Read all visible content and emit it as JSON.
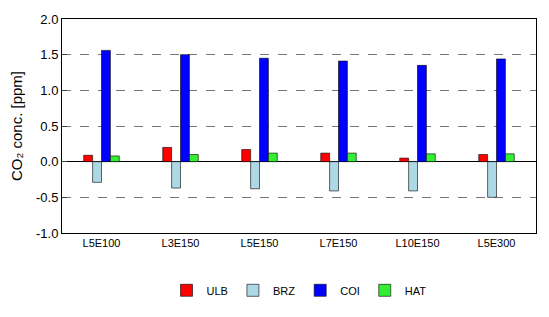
{
  "chart_data": {
    "type": "bar",
    "categories": [
      "L5E100",
      "L3E150",
      "L5E150",
      "L7E150",
      "L10E150",
      "L5E300"
    ],
    "series": [
      {
        "name": "ULB",
        "color": "#ff0000",
        "values": [
          0.09,
          0.2,
          0.17,
          0.12,
          0.05,
          0.1
        ]
      },
      {
        "name": "BRZ",
        "color": "#add8e6",
        "values": [
          -0.29,
          -0.37,
          -0.38,
          -0.41,
          -0.41,
          -0.5
        ]
      },
      {
        "name": "COI",
        "color": "#0000ff",
        "values": [
          1.56,
          1.5,
          1.45,
          1.41,
          1.35,
          1.44
        ]
      },
      {
        "name": "HAT",
        "color": "#33ee33",
        "values": [
          0.08,
          0.1,
          0.12,
          0.12,
          0.11,
          0.11
        ]
      }
    ],
    "y_label": "CO₂ conc. [ppm]",
    "ylim": [
      -1,
      2
    ],
    "yticks": [
      {
        "value": -1,
        "label": "-1.0"
      },
      {
        "value": -0.5,
        "label": "-0.5"
      },
      {
        "value": 0,
        "label": "0.0"
      },
      {
        "value": 0.5,
        "label": "0.5"
      },
      {
        "value": 1,
        "label": "1.0"
      },
      {
        "value": 1.5,
        "label": "1.5"
      },
      {
        "value": 2,
        "label": "2.0"
      }
    ],
    "grid": true,
    "legend": "bottom"
  }
}
